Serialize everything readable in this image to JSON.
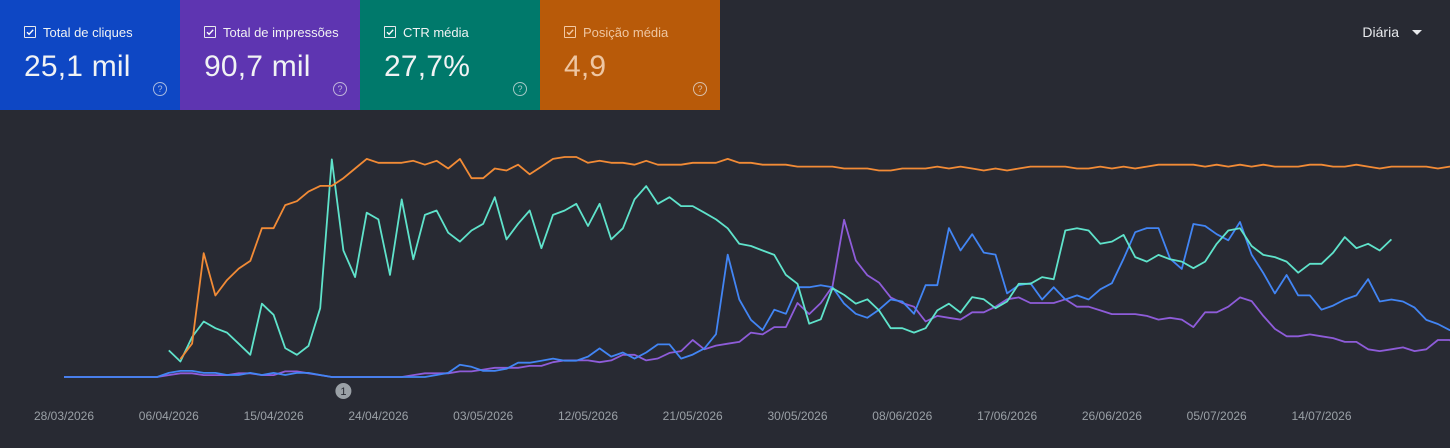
{
  "cards": [
    {
      "label": "Total de cliques",
      "value": "25,1 mil",
      "color": "#0e47c4",
      "checked": true
    },
    {
      "label": "Total de impressões",
      "value": "90,7 mil",
      "color": "#5e35b1",
      "checked": true
    },
    {
      "label": "CTR média",
      "value": "27,7%",
      "color": "#00796b",
      "checked": true
    },
    {
      "label": "Posição média",
      "value": "4,9",
      "color": "#b85a09",
      "checked": true
    }
  ],
  "help_glyph": "?",
  "period": {
    "label": "Diária"
  },
  "chart_data": {
    "type": "line",
    "x_start": "2026-03-28",
    "x_end": "2026-07-21",
    "x_ticks": [
      "28/03/2026",
      "06/04/2026",
      "15/04/2026",
      "24/04/2026",
      "03/05/2026",
      "12/05/2026",
      "21/05/2026",
      "30/05/2026",
      "08/06/2026",
      "17/06/2026",
      "26/06/2026",
      "05/07/2026",
      "14/07/2026"
    ],
    "annotation": {
      "date": "2026-04-21",
      "label": "1"
    },
    "series": [
      {
        "name": "Total de cliques",
        "color": "#4285f4",
        "start": "2026-03-28",
        "values": [
          0,
          0,
          0,
          0,
          0,
          0,
          0,
          0,
          0,
          2,
          3,
          3,
          2,
          2,
          1,
          1,
          2,
          1,
          2,
          1,
          2,
          2,
          1,
          0,
          0,
          0,
          0,
          0,
          0,
          0,
          0,
          0,
          1,
          2,
          6,
          5,
          3,
          3,
          4,
          7,
          7,
          8,
          9,
          8,
          8,
          10,
          14,
          10,
          12,
          9,
          12,
          16,
          16,
          9,
          11,
          14,
          21,
          60,
          38,
          28,
          23,
          33,
          31,
          44,
          44,
          45,
          44,
          36,
          31,
          29,
          33,
          38,
          37,
          31,
          45,
          45,
          73,
          62,
          70,
          61,
          60,
          41,
          45,
          46,
          38,
          44,
          38,
          40,
          38,
          43,
          46,
          58,
          71,
          73,
          73,
          58,
          53,
          75,
          74,
          70,
          67,
          76,
          60,
          51,
          41,
          50,
          40,
          40,
          33,
          35,
          38,
          40,
          48,
          37,
          38,
          37,
          34,
          28,
          26,
          23,
          25,
          23,
          22,
          24,
          28,
          41,
          35,
          33
        ]
      },
      {
        "name": "Total de impressões",
        "color": "#8e5cd9",
        "start": "2026-03-28",
        "values": [
          0,
          0,
          0,
          0,
          0,
          0,
          0,
          0,
          0,
          1,
          2,
          2,
          1,
          1,
          1,
          2,
          2,
          1,
          1,
          3,
          3,
          2,
          1,
          0,
          0,
          0,
          0,
          0,
          0,
          0,
          1,
          2,
          2,
          2,
          3,
          3,
          4,
          5,
          5,
          5,
          6,
          6,
          8,
          9,
          9,
          9,
          8,
          9,
          12,
          12,
          9,
          10,
          13,
          14,
          20,
          15,
          17,
          18,
          19,
          24,
          23,
          27,
          27,
          40,
          34,
          40,
          49,
          85,
          63,
          55,
          51,
          43,
          40,
          38,
          30,
          33,
          32,
          31,
          35,
          35,
          38,
          42,
          43,
          40,
          40,
          40,
          42,
          38,
          38,
          36,
          34,
          34,
          34,
          33,
          31,
          32,
          31,
          27,
          35,
          35,
          38,
          43,
          41,
          33,
          26,
          22,
          22,
          23,
          22,
          21,
          19,
          19,
          15,
          14,
          15,
          16,
          14,
          15,
          20,
          20,
          16,
          15,
          15,
          16,
          13,
          13
        ]
      },
      {
        "name": "CTR média",
        "color": "#5fe3cb",
        "start": "2026-04-06",
        "values": [
          12,
          7,
          18,
          25,
          22,
          20,
          15,
          10,
          33,
          28,
          13,
          10,
          14,
          31,
          98,
          57,
          45,
          74,
          71,
          46,
          80,
          53,
          73,
          75,
          65,
          61,
          66,
          69,
          81,
          62,
          69,
          75,
          58,
          73,
          75,
          78,
          68,
          78,
          62,
          67,
          80,
          86,
          78,
          81,
          77,
          77,
          74,
          71,
          67,
          60,
          59,
          57,
          55,
          46,
          42,
          24,
          26,
          40,
          37,
          33,
          35,
          30,
          22,
          22,
          20,
          22,
          30,
          33,
          29,
          36,
          35,
          31,
          34,
          42,
          42,
          45,
          44,
          66,
          67,
          66,
          60,
          61,
          64,
          54,
          52,
          55,
          53,
          52,
          49,
          52,
          60,
          66,
          67,
          59,
          55,
          54,
          52,
          47,
          51,
          51,
          56,
          63,
          58,
          60,
          57,
          62
        ]
      },
      {
        "name": "Posição média",
        "color": "#f28b36",
        "start": "2026-04-07",
        "values": [
          11.5,
          10.7,
          6.0,
          8.2,
          7.4,
          6.8,
          6.4,
          4.7,
          4.7,
          3.5,
          3.3,
          2.8,
          2.5,
          2.5,
          2.1,
          1.6,
          1.1,
          1.3,
          1.3,
          1.3,
          1.2,
          1.4,
          1.2,
          1.6,
          1.1,
          2.1,
          2.1,
          1.6,
          1.7,
          1.4,
          1.9,
          1.5,
          1.1,
          1.0,
          1.0,
          1.3,
          1.2,
          1.3,
          1.3,
          1.4,
          1.2,
          1.4,
          1.4,
          1.4,
          1.3,
          1.3,
          1.3,
          1.1,
          1.3,
          1.3,
          1.4,
          1.4,
          1.4,
          1.5,
          1.5,
          1.5,
          1.5,
          1.6,
          1.6,
          1.6,
          1.7,
          1.7,
          1.6,
          1.6,
          1.6,
          1.5,
          1.6,
          1.5,
          1.6,
          1.7,
          1.6,
          1.7,
          1.6,
          1.5,
          1.5,
          1.5,
          1.5,
          1.6,
          1.6,
          1.5,
          1.6,
          1.5,
          1.6,
          1.5,
          1.4,
          1.4,
          1.4,
          1.4,
          1.5,
          1.4,
          1.5,
          1.4,
          1.5,
          1.4,
          1.5,
          1.5,
          1.5,
          1.4,
          1.4,
          1.5,
          1.5,
          1.4,
          1.5,
          1.6,
          1.5,
          1.5,
          1.5,
          1.5,
          1.6,
          1.5,
          1.5,
          1.5,
          1.5
        ]
      }
    ]
  }
}
